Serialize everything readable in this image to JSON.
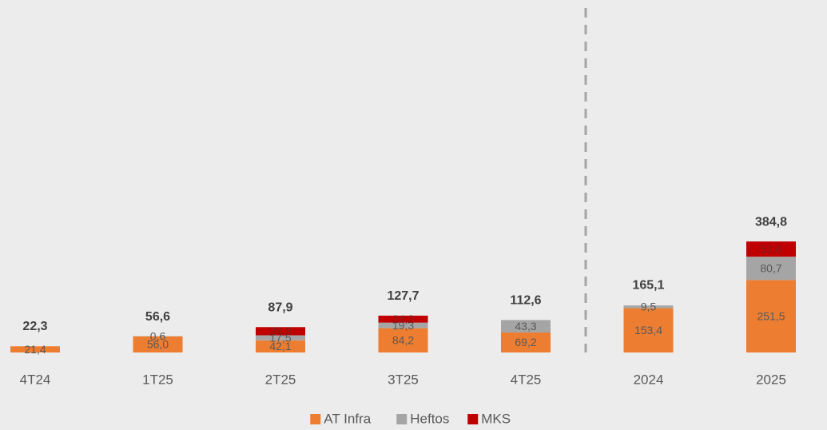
{
  "chart_data": {
    "type": "stacked_bar",
    "categories": [
      "4T24",
      "1T25",
      "2T25",
      "3T25",
      "4T25",
      "2024",
      "2025"
    ],
    "series": [
      {
        "name": "AT Infra",
        "color": "#ed7d31",
        "values": [
          21.4,
          56.0,
          42.1,
          84.2,
          69.2,
          153.4,
          251.5
        ],
        "value_labels": [
          "21,4",
          "56,0",
          "42,1",
          "84,2",
          "69,2",
          "153,4",
          "251,5"
        ]
      },
      {
        "name": "Heftos",
        "color": "#a5a5a5",
        "values": [
          null,
          0.6,
          17.5,
          19.3,
          43.3,
          9.5,
          80.7
        ],
        "value_labels": [
          null,
          "0,6",
          "17,5",
          "19,3",
          "43,3",
          "9,5",
          "80,7"
        ]
      },
      {
        "name": "MKS",
        "color": "#c00000",
        "values": [
          null,
          null,
          28.3,
          24.2,
          null,
          null,
          52.6
        ],
        "value_labels": [
          null,
          null,
          "28,3",
          "24,2",
          null,
          null,
          "52,6"
        ]
      }
    ],
    "totals": {
      "values": [
        22.3,
        56.6,
        87.9,
        127.7,
        112.6,
        165.1,
        384.8
      ],
      "value_labels": [
        "22,3",
        "56,6",
        "87,9",
        "127,7",
        "112,6",
        "165,1",
        "384,8"
      ]
    },
    "ylim": [
      0,
      1200
    ],
    "legend": "bottom"
  }
}
